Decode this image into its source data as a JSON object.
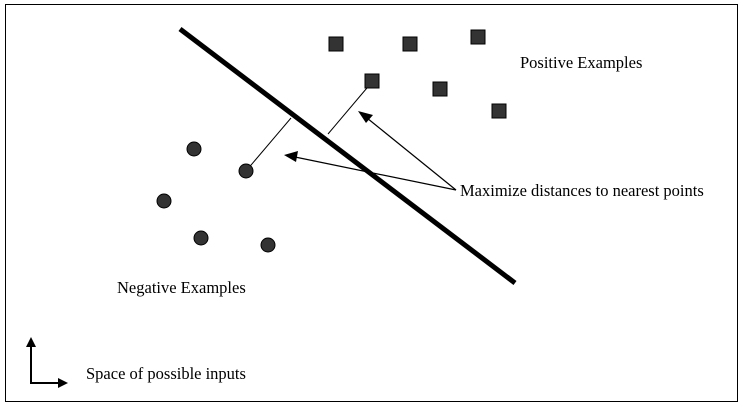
{
  "labels": {
    "positive": "Positive Examples",
    "negative": "Negative Examples",
    "annotation": "Maximize distances to nearest points",
    "input_space": "Space of possible inputs"
  },
  "colors": {
    "background": "#ffffff",
    "border": "#000000",
    "marker_fill": "#333333",
    "stroke": "#000000"
  },
  "markers": {
    "positive_shape": "square",
    "negative_shape": "circle"
  }
}
